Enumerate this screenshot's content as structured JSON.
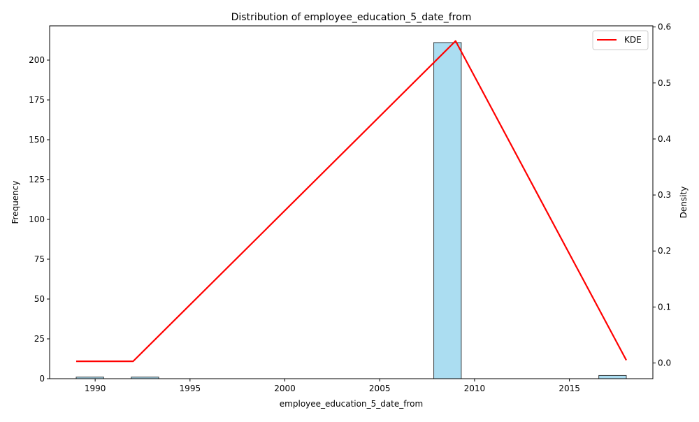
{
  "chart_data": {
    "type": "bar",
    "title": "Distribution of employee_education_5_date_from",
    "xlabel": "employee_education_5_date_from",
    "ylabel": "Frequency",
    "y2label": "Density",
    "xlim": [
      1987.6,
      2019.4
    ],
    "ylim": [
      0,
      221.5
    ],
    "y2lim": [
      -0.028,
      0.602
    ],
    "x_ticks": [
      1990,
      1995,
      2000,
      2005,
      2010,
      2015
    ],
    "y_ticks": [
      0,
      25,
      50,
      75,
      100,
      125,
      150,
      175,
      200
    ],
    "y2_ticks": [
      0.0,
      0.1,
      0.2,
      0.3,
      0.4,
      0.5,
      0.6
    ],
    "histogram": {
      "color": "#87ceeb",
      "bins": [
        {
          "x0": 1989.0,
          "x1": 1990.45,
          "count": 1
        },
        {
          "x0": 1991.9,
          "x1": 1993.35,
          "count": 1
        },
        {
          "x0": 2007.85,
          "x1": 2009.3,
          "count": 211
        },
        {
          "x0": 2016.55,
          "x1": 2018.0,
          "count": 2
        }
      ]
    },
    "series": [
      {
        "name": "KDE",
        "color": "#ff0000",
        "x": [
          1989,
          1992,
          2009,
          2018
        ],
        "y": [
          0.003,
          0.003,
          0.575,
          0.005
        ]
      }
    ],
    "legend_position": "upper right",
    "grid": false
  }
}
